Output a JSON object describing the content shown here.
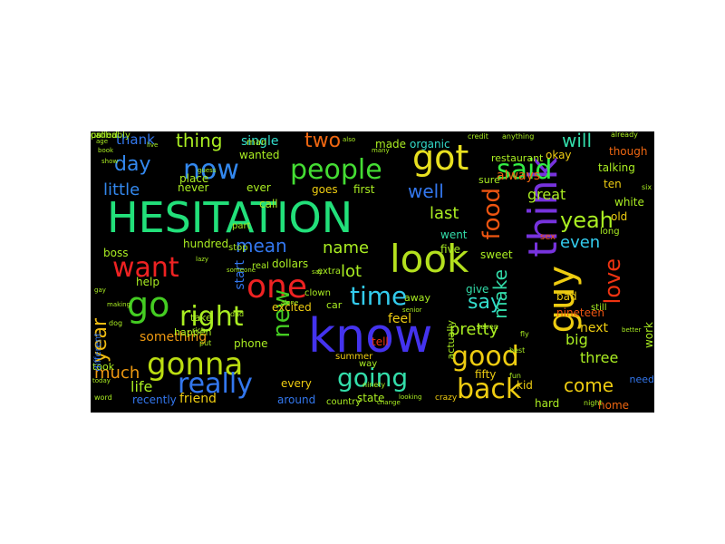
{
  "words": [
    {
      "text": "HESITATION",
      "color": "#22e07a",
      "rotated": false
    },
    {
      "text": "know",
      "color": "#4433ee",
      "rotated": false
    },
    {
      "text": "look",
      "color": "#b4e01e",
      "rotated": false
    },
    {
      "text": "think",
      "color": "#7733dd",
      "rotated": true
    },
    {
      "text": "got",
      "color": "#e8e020",
      "rotated": false
    },
    {
      "text": "people",
      "color": "#44dd33",
      "rotated": false
    },
    {
      "text": "said",
      "color": "#33ee44",
      "rotated": false
    },
    {
      "text": "now",
      "color": "#3388ee",
      "rotated": false
    },
    {
      "text": "one",
      "color": "#ee2222",
      "rotated": false
    },
    {
      "text": "go",
      "color": "#44cc22",
      "rotated": false
    },
    {
      "text": "gonna",
      "color": "#bbdd11",
      "rotated": false
    },
    {
      "text": "right",
      "color": "#aaee22",
      "rotated": false
    },
    {
      "text": "want",
      "color": "#ee2222",
      "rotated": false
    },
    {
      "text": "time",
      "color": "#33ccee",
      "rotated": false
    },
    {
      "text": "guy",
      "color": "#eecc11",
      "rotated": true
    },
    {
      "text": "good",
      "color": "#eecc11",
      "rotated": false
    },
    {
      "text": "going",
      "color": "#33ddaa",
      "rotated": false
    },
    {
      "text": "really",
      "color": "#3377ee",
      "rotated": false
    },
    {
      "text": "new",
      "color": "#44cc22",
      "rotated": true
    },
    {
      "text": "back",
      "color": "#eecc11",
      "rotated": false
    },
    {
      "text": "food",
      "color": "#ee5511",
      "rotated": true
    },
    {
      "text": "yeah",
      "color": "#aaee22",
      "rotated": false
    },
    {
      "text": "day",
      "color": "#3388ee",
      "rotated": false
    },
    {
      "text": "well",
      "color": "#3377ee",
      "rotated": false
    },
    {
      "text": "two",
      "color": "#ee6611",
      "rotated": false
    },
    {
      "text": "thing",
      "color": "#aaee22",
      "rotated": false
    },
    {
      "text": "little",
      "color": "#3388ee",
      "rotated": false
    },
    {
      "text": "say",
      "color": "#33ddcc",
      "rotated": false
    },
    {
      "text": "love",
      "color": "#ee3311",
      "rotated": true
    },
    {
      "text": "year",
      "color": "#eebb11",
      "rotated": true
    },
    {
      "text": "mean",
      "color": "#3377ee",
      "rotated": false
    },
    {
      "text": "name",
      "color": "#aaee22",
      "rotated": false
    },
    {
      "text": "lot",
      "color": "#aaee22",
      "rotated": false
    },
    {
      "text": "even",
      "color": "#33ccee",
      "rotated": false
    },
    {
      "text": "last",
      "color": "#aaee22",
      "rotated": false
    },
    {
      "text": "will",
      "color": "#33ddaa",
      "rotated": false
    },
    {
      "text": "make",
      "color": "#33ddaa",
      "rotated": true
    },
    {
      "text": "pretty",
      "color": "#aaee22",
      "rotated": false
    },
    {
      "text": "much",
      "color": "#ee9911",
      "rotated": false
    },
    {
      "text": "come",
      "color": "#eecc11",
      "rotated": false
    },
    {
      "text": "three",
      "color": "#aaee22",
      "rotated": false
    },
    {
      "text": "life",
      "color": "#aaee22",
      "rotated": false
    },
    {
      "text": "something",
      "color": "#ee9911",
      "rotated": false
    },
    {
      "text": "start",
      "color": "#3377ee",
      "rotated": true
    },
    {
      "text": "thank",
      "color": "#3377ee",
      "rotated": false
    },
    {
      "text": "always",
      "color": "#ee6611",
      "rotated": false
    },
    {
      "text": "great",
      "color": "#aaee22",
      "rotated": false
    },
    {
      "text": "single",
      "color": "#33ddcc",
      "rotated": false
    },
    {
      "text": "made",
      "color": "#aaee22",
      "rotated": false
    },
    {
      "text": "organic",
      "color": "#33ddcc",
      "rotated": false
    },
    {
      "text": "place",
      "color": "#aaee22",
      "rotated": false
    },
    {
      "text": "wanted",
      "color": "#aaee22",
      "rotated": false
    },
    {
      "text": "never",
      "color": "#aaee22",
      "rotated": false
    },
    {
      "text": "ever",
      "color": "#aaee22",
      "rotated": false
    },
    {
      "text": "goes",
      "color": "#eecc11",
      "rotated": false
    },
    {
      "text": "first",
      "color": "#aaee22",
      "rotated": false
    },
    {
      "text": "call",
      "color": "#aaee22",
      "rotated": false
    },
    {
      "text": "dollars",
      "color": "#aaee22",
      "rotated": false
    },
    {
      "text": "excited",
      "color": "#eecc11",
      "rotated": false
    },
    {
      "text": "tell",
      "color": "#ee3311",
      "rotated": false
    },
    {
      "text": "feel",
      "color": "#eecc11",
      "rotated": false
    },
    {
      "text": "give",
      "color": "#33ddaa",
      "rotated": false
    },
    {
      "text": "went",
      "color": "#33ddaa",
      "rotated": false
    },
    {
      "text": "five",
      "color": "#aaee22",
      "rotated": false
    },
    {
      "text": "sweet",
      "color": "#aaee22",
      "rotated": false
    },
    {
      "text": "big",
      "color": "#aaee22",
      "rotated": false
    },
    {
      "text": "bad",
      "color": "#eecc11",
      "rotated": false
    },
    {
      "text": "next",
      "color": "#eecc11",
      "rotated": false
    },
    {
      "text": "nineteen",
      "color": "#ee5511",
      "rotated": false
    },
    {
      "text": "white",
      "color": "#aaee22",
      "rotated": false
    },
    {
      "text": "old",
      "color": "#eecc11",
      "rotated": false
    },
    {
      "text": "ten",
      "color": "#eecc11",
      "rotated": false
    },
    {
      "text": "talking",
      "color": "#aaee22",
      "rotated": false
    },
    {
      "text": "though",
      "color": "#ee6611",
      "rotated": false
    },
    {
      "text": "okay",
      "color": "#eecc11",
      "rotated": false
    },
    {
      "text": "restaurant",
      "color": "#aaee22",
      "rotated": false
    },
    {
      "text": "sure",
      "color": "#aaee22",
      "rotated": false
    },
    {
      "text": "help",
      "color": "#aaee22",
      "rotated": false
    },
    {
      "text": "phone",
      "color": "#aaee22",
      "rotated": false
    },
    {
      "text": "friend",
      "color": "#eecc11",
      "rotated": false
    },
    {
      "text": "recently",
      "color": "#3377ee",
      "rotated": false
    },
    {
      "text": "around",
      "color": "#3377ee",
      "rotated": false
    },
    {
      "text": "every",
      "color": "#eecc11",
      "rotated": false
    },
    {
      "text": "summer",
      "color": "#eecc11",
      "rotated": false
    },
    {
      "text": "way",
      "color": "#aaee22",
      "rotated": false
    },
    {
      "text": "state",
      "color": "#aaee22",
      "rotated": false
    },
    {
      "text": "fifty",
      "color": "#eecc11",
      "rotated": false
    },
    {
      "text": "kid",
      "color": "#eecc11",
      "rotated": false
    },
    {
      "text": "hard",
      "color": "#aaee22",
      "rotated": false
    },
    {
      "text": "home",
      "color": "#ee6611",
      "rotated": false
    },
    {
      "text": "need",
      "color": "#3377ee",
      "rotated": false
    },
    {
      "text": "work",
      "color": "#aaee22",
      "rotated": true
    },
    {
      "text": "actually",
      "color": "#aaee22",
      "rotated": true
    },
    {
      "text": "car",
      "color": "#aaee22",
      "rotated": false
    },
    {
      "text": "away",
      "color": "#aaee22",
      "rotated": false
    },
    {
      "text": "hundred",
      "color": "#aaee22",
      "rotated": false
    },
    {
      "text": "take",
      "color": "#aaee22",
      "rotated": false
    },
    {
      "text": "happen",
      "color": "#aaee22",
      "rotated": false
    },
    {
      "text": "took",
      "color": "#aaee22",
      "rotated": false
    },
    {
      "text": "boss",
      "color": "#aaee22",
      "rotated": false
    },
    {
      "text": "different",
      "color": "#3377ee",
      "rotated": true
    },
    {
      "text": "extra",
      "color": "#aaee22",
      "rotated": false
    },
    {
      "text": "still",
      "color": "#aaee22",
      "rotated": false
    },
    {
      "text": "real",
      "color": "#aaee22",
      "rotated": false
    },
    {
      "text": "stop",
      "color": "#aaee22",
      "rotated": false
    },
    {
      "text": "part",
      "color": "#aaee22",
      "rotated": false
    },
    {
      "text": "man",
      "color": "#aaee22",
      "rotated": false
    },
    {
      "text": "clown",
      "color": "#aaee22",
      "rotated": false
    },
    {
      "text": "sex",
      "color": "#ee5511",
      "rotated": false
    },
    {
      "text": "long",
      "color": "#aaee22",
      "rotated": false
    },
    {
      "text": "country",
      "color": "#aaee22",
      "rotated": false
    },
    {
      "text": "crazy",
      "color": "#eecc11",
      "rotated": false
    },
    {
      "text": "anything",
      "color": "#aaee22",
      "rotated": false
    },
    {
      "text": "credit",
      "color": "#aaee22",
      "rotated": false
    },
    {
      "text": "already",
      "color": "#aaee22",
      "rotated": false
    },
    {
      "text": "seven",
      "color": "#aaee22",
      "rotated": false
    },
    {
      "text": "night",
      "color": "#aaee22",
      "rotated": false
    },
    {
      "text": "fun",
      "color": "#aaee22",
      "rotated": false
    },
    {
      "text": "best",
      "color": "#aaee22",
      "rotated": false
    },
    {
      "text": "fly",
      "color": "#aaee22",
      "rotated": false
    },
    {
      "text": "rich",
      "color": "#aaee22",
      "rotated": false
    },
    {
      "text": "put",
      "color": "#aaee22",
      "rotated": false
    },
    {
      "text": "dad",
      "color": "#aaee22",
      "rotated": false
    },
    {
      "text": "dog",
      "color": "#aaee22",
      "rotated": false
    },
    {
      "text": "book",
      "color": "#aaee22",
      "rotated": false
    },
    {
      "text": "also",
      "color": "#aaee22",
      "rotated": false
    },
    {
      "text": "many",
      "color": "#aaee22",
      "rotated": false
    },
    {
      "text": "say",
      "color": "#aaee22",
      "rotated": false
    },
    {
      "text": "alone",
      "color": "#aaee22",
      "rotated": false
    },
    {
      "text": "senior",
      "color": "#aaee22",
      "rotated": false
    },
    {
      "text": "ninety",
      "color": "#aaee22",
      "rotated": false
    },
    {
      "text": "six",
      "color": "#aaee22",
      "rotated": false
    },
    {
      "text": "show",
      "color": "#aaee22",
      "rotated": false
    },
    {
      "text": "guess",
      "color": "#aaee22",
      "rotated": false
    },
    {
      "text": "lazy",
      "color": "#aaee22",
      "rotated": false
    },
    {
      "text": "someone",
      "color": "#aaee22",
      "rotated": false
    },
    {
      "text": "better",
      "color": "#aaee22",
      "rotated": false
    },
    {
      "text": "looking",
      "color": "#aaee22",
      "rotated": false
    },
    {
      "text": "gay",
      "color": "#aaee22",
      "rotated": false
    },
    {
      "text": "making",
      "color": "#aaee22",
      "rotated": false
    },
    {
      "text": "today",
      "color": "#aaee22",
      "rotated": false
    },
    {
      "text": "word",
      "color": "#aaee22",
      "rotated": false
    },
    {
      "text": "change",
      "color": "#aaee22",
      "rotated": false
    },
    {
      "text": "age",
      "color": "#aaee22",
      "rotated": false
    },
    {
      "text": "live",
      "color": "#aaee22",
      "rotated": false
    },
    {
      "text": "us",
      "color": "#aaee22",
      "rotated": false
    },
    {
      "text": "probably",
      "color": "#aaee22",
      "rotated": false
    },
    {
      "text": "called",
      "color": "#aaee22",
      "rotated": false
    }
  ]
}
